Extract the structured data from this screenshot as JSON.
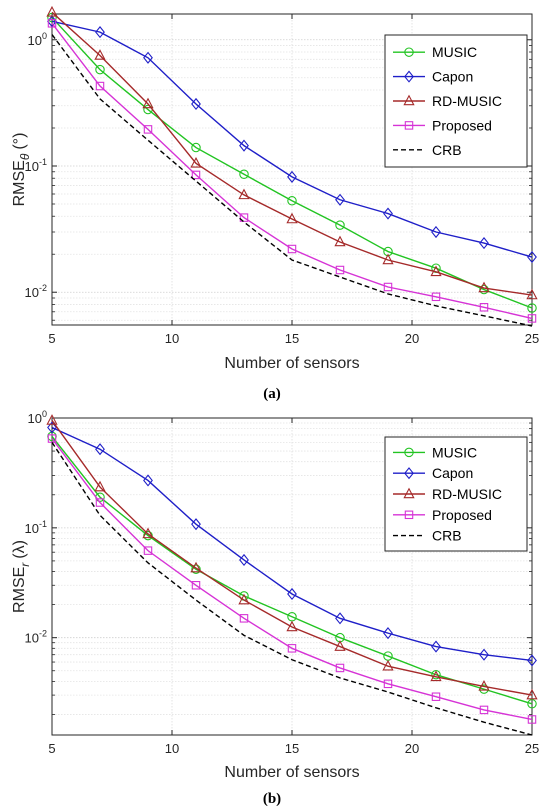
{
  "chart_data": [
    {
      "type": "line",
      "subplot_label": "(a)",
      "xlabel": "Number of sensors",
      "ylabel_main": "RMSE",
      "ylabel_sub": "θ",
      "ylabel_unit": "(°)",
      "yscale": "log",
      "xlim": [
        5,
        25
      ],
      "ylim": [
        0.0055,
        1.6
      ],
      "xticks": [
        5,
        10,
        15,
        20,
        25
      ],
      "yticks": [
        {
          "value": 0.01,
          "base": "10",
          "exp": "-2"
        },
        {
          "value": 0.1,
          "base": "10",
          "exp": "-1"
        },
        {
          "value": 1,
          "base": "10",
          "exp": "0"
        }
      ],
      "grid": true,
      "legend_position": "top-right",
      "x": [
        5,
        7,
        9,
        11,
        13,
        15,
        17,
        19,
        21,
        23,
        25
      ],
      "series": [
        {
          "name": "MUSIC",
          "color": "#22c422",
          "marker": "circle",
          "dash": "solid",
          "values": [
            1.5,
            0.58,
            0.28,
            0.14,
            0.086,
            0.053,
            0.034,
            0.021,
            0.0155,
            0.0105,
            0.0075
          ]
        },
        {
          "name": "Capon",
          "color": "#1f1fc8",
          "marker": "diamond",
          "dash": "solid",
          "values": [
            1.4,
            1.15,
            0.72,
            0.31,
            0.145,
            0.082,
            0.054,
            0.042,
            0.03,
            0.0245,
            0.019
          ]
        },
        {
          "name": "RD-MUSIC",
          "color": "#a52a2a",
          "marker": "triangle",
          "dash": "solid",
          "values": [
            1.65,
            0.75,
            0.31,
            0.105,
            0.059,
            0.038,
            0.025,
            0.018,
            0.0145,
            0.0108,
            0.0095
          ]
        },
        {
          "name": "Proposed",
          "color": "#d633d6",
          "marker": "square",
          "dash": "solid",
          "values": [
            1.35,
            0.43,
            0.195,
            0.085,
            0.039,
            0.022,
            0.015,
            0.011,
            0.0092,
            0.0076,
            0.0062
          ]
        },
        {
          "name": "CRB",
          "color": "#000000",
          "marker": "none",
          "dash": "dashed",
          "values": [
            1.1,
            0.34,
            0.16,
            0.076,
            0.036,
            0.018,
            0.0132,
            0.0097,
            0.0078,
            0.0065,
            0.0054
          ]
        }
      ]
    },
    {
      "type": "line",
      "subplot_label": "(b)",
      "xlabel": "Number of sensors",
      "ylabel_main": "RMSE",
      "ylabel_sub": "r",
      "ylabel_unit": "(λ)",
      "yscale": "log",
      "xlim": [
        5,
        25
      ],
      "ylim": [
        0.0013,
        1.0
      ],
      "xticks": [
        5,
        10,
        15,
        20,
        25
      ],
      "yticks": [
        {
          "value": 0.01,
          "base": "10",
          "exp": "-2"
        },
        {
          "value": 0.1,
          "base": "10",
          "exp": "-1"
        },
        {
          "value": 1,
          "base": "10",
          "exp": "0"
        }
      ],
      "grid": true,
      "legend_position": "top-right",
      "x": [
        5,
        7,
        9,
        11,
        13,
        15,
        17,
        19,
        21,
        23,
        25
      ],
      "series": [
        {
          "name": "MUSIC",
          "color": "#22c422",
          "marker": "circle",
          "dash": "solid",
          "values": [
            0.68,
            0.19,
            0.085,
            0.042,
            0.024,
            0.0155,
            0.01,
            0.0068,
            0.0046,
            0.0034,
            0.0025
          ]
        },
        {
          "name": "Capon",
          "color": "#1f1fc8",
          "marker": "diamond",
          "dash": "solid",
          "values": [
            0.82,
            0.52,
            0.27,
            0.108,
            0.051,
            0.025,
            0.015,
            0.011,
            0.0083,
            0.007,
            0.0062
          ]
        },
        {
          "name": "RD-MUSIC",
          "color": "#a52a2a",
          "marker": "triangle",
          "dash": "solid",
          "values": [
            0.95,
            0.235,
            0.088,
            0.043,
            0.022,
            0.0125,
            0.0083,
            0.0055,
            0.0044,
            0.0036,
            0.003
          ]
        },
        {
          "name": "Proposed",
          "color": "#d633d6",
          "marker": "square",
          "dash": "solid",
          "values": [
            0.65,
            0.17,
            0.062,
            0.03,
            0.015,
            0.008,
            0.0053,
            0.0038,
            0.0029,
            0.0022,
            0.0018
          ]
        },
        {
          "name": "CRB",
          "color": "#000000",
          "marker": "none",
          "dash": "dashed",
          "values": [
            0.6,
            0.13,
            0.048,
            0.022,
            0.0105,
            0.0063,
            0.0043,
            0.0032,
            0.0023,
            0.0017,
            0.0013
          ]
        }
      ]
    }
  ]
}
